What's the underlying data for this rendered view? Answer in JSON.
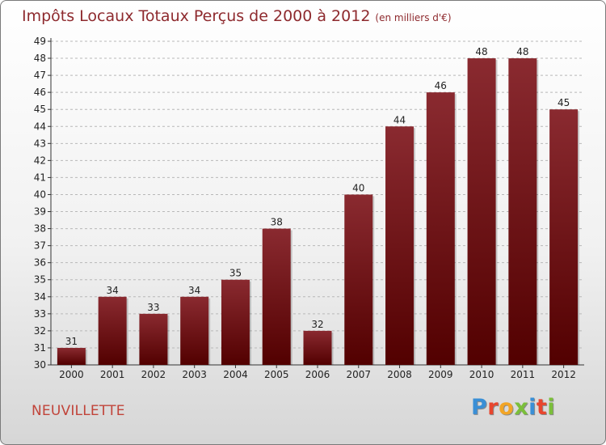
{
  "header": {
    "title": "Impôts Locaux Totaux Perçus de 2000 à 2012",
    "unit": "(en milliers d'€)"
  },
  "footer": {
    "location": "NEUVILLETTE",
    "brand": "Proxiti",
    "brand_colors": [
      "#3a8fd6",
      "#e8462e",
      "#f2a526",
      "#7bbf3a",
      "#3a8fd6",
      "#e8462e",
      "#7bbf3a"
    ]
  },
  "colors": {
    "bar_top": "#8a2a30",
    "bar_bottom": "#520000",
    "grid": "#b8b8b8",
    "axis_text": "#222222"
  },
  "chart_data": {
    "type": "bar",
    "title": "Impôts Locaux Totaux Perçus de 2000 à 2012",
    "xlabel": "",
    "ylabel": "",
    "categories": [
      "2000",
      "2001",
      "2002",
      "2003",
      "2004",
      "2005",
      "2006",
      "2007",
      "2008",
      "2009",
      "2010",
      "2011",
      "2012"
    ],
    "values": [
      31,
      34,
      33,
      34,
      35,
      38,
      32,
      40,
      44,
      46,
      48,
      48,
      45
    ],
    "ylim": [
      30,
      49
    ],
    "yticks": [
      30,
      31,
      32,
      33,
      34,
      35,
      36,
      37,
      38,
      39,
      40,
      41,
      42,
      43,
      44,
      45,
      46,
      47,
      48,
      49
    ],
    "grid": true,
    "legend": "none"
  }
}
